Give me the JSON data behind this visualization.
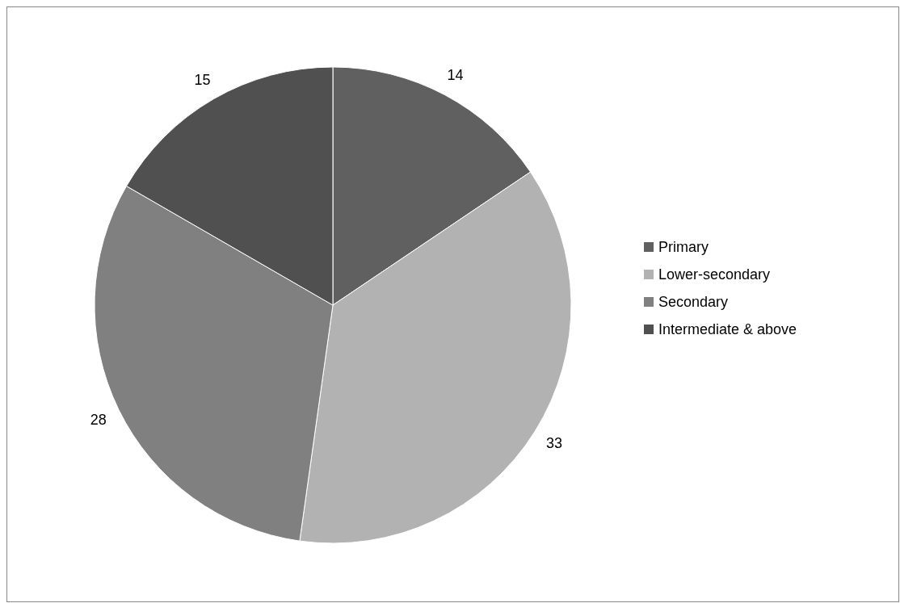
{
  "chart_data": {
    "type": "pie",
    "categories": [
      "Primary",
      "Lower-secondary",
      "Secondary",
      "Intermediate & above"
    ],
    "values": [
      14,
      33,
      28,
      15
    ],
    "colors": [
      "#606060",
      "#b2b2b2",
      "#808080",
      "#505050"
    ],
    "data_labels": true,
    "legend": "right"
  }
}
